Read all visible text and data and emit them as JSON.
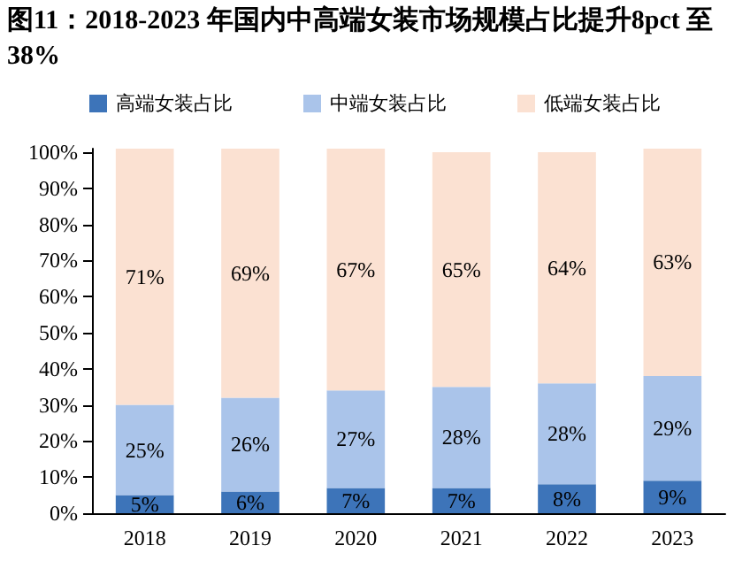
{
  "chart_data": {
    "type": "bar",
    "title": "图11：2018-2023 年国内中高端女装市场规模占比提升8pct 至 38%",
    "categories": [
      "2018",
      "2019",
      "2020",
      "2021",
      "2022",
      "2023"
    ],
    "stacked": true,
    "legend": "top",
    "grid": false,
    "series": [
      {
        "name": "高端女装占比",
        "color": "#3d74b9",
        "values": [
          5,
          6,
          7,
          7,
          8,
          9
        ],
        "value_labels": [
          "5%",
          "6%",
          "7%",
          "7%",
          "8%",
          "9%"
        ]
      },
      {
        "name": "中端女装占比",
        "color": "#aac4ea",
        "values": [
          25,
          26,
          27,
          28,
          28,
          29
        ],
        "value_labels": [
          "25%",
          "26%",
          "27%",
          "28%",
          "28%",
          "29%"
        ]
      },
      {
        "name": "低端女装占比",
        "color": "#fbe1d2",
        "values": [
          71,
          69,
          67,
          65,
          64,
          63
        ],
        "value_labels": [
          "71%",
          "69%",
          "67%",
          "65%",
          "64%",
          "63%"
        ]
      }
    ],
    "ylim": [
      0,
      101
    ],
    "yticks": [
      {
        "value": 0,
        "label": "0%"
      },
      {
        "value": 10,
        "label": "10%"
      },
      {
        "value": 20,
        "label": "20%"
      },
      {
        "value": 30,
        "label": "30%"
      },
      {
        "value": 40,
        "label": "40%"
      },
      {
        "value": 50,
        "label": "50%"
      },
      {
        "value": 60,
        "label": "60%"
      },
      {
        "value": 70,
        "label": "70%"
      },
      {
        "value": 80,
        "label": "80%"
      },
      {
        "value": 90,
        "label": "90%"
      },
      {
        "value": 100,
        "label": "100%"
      }
    ]
  }
}
